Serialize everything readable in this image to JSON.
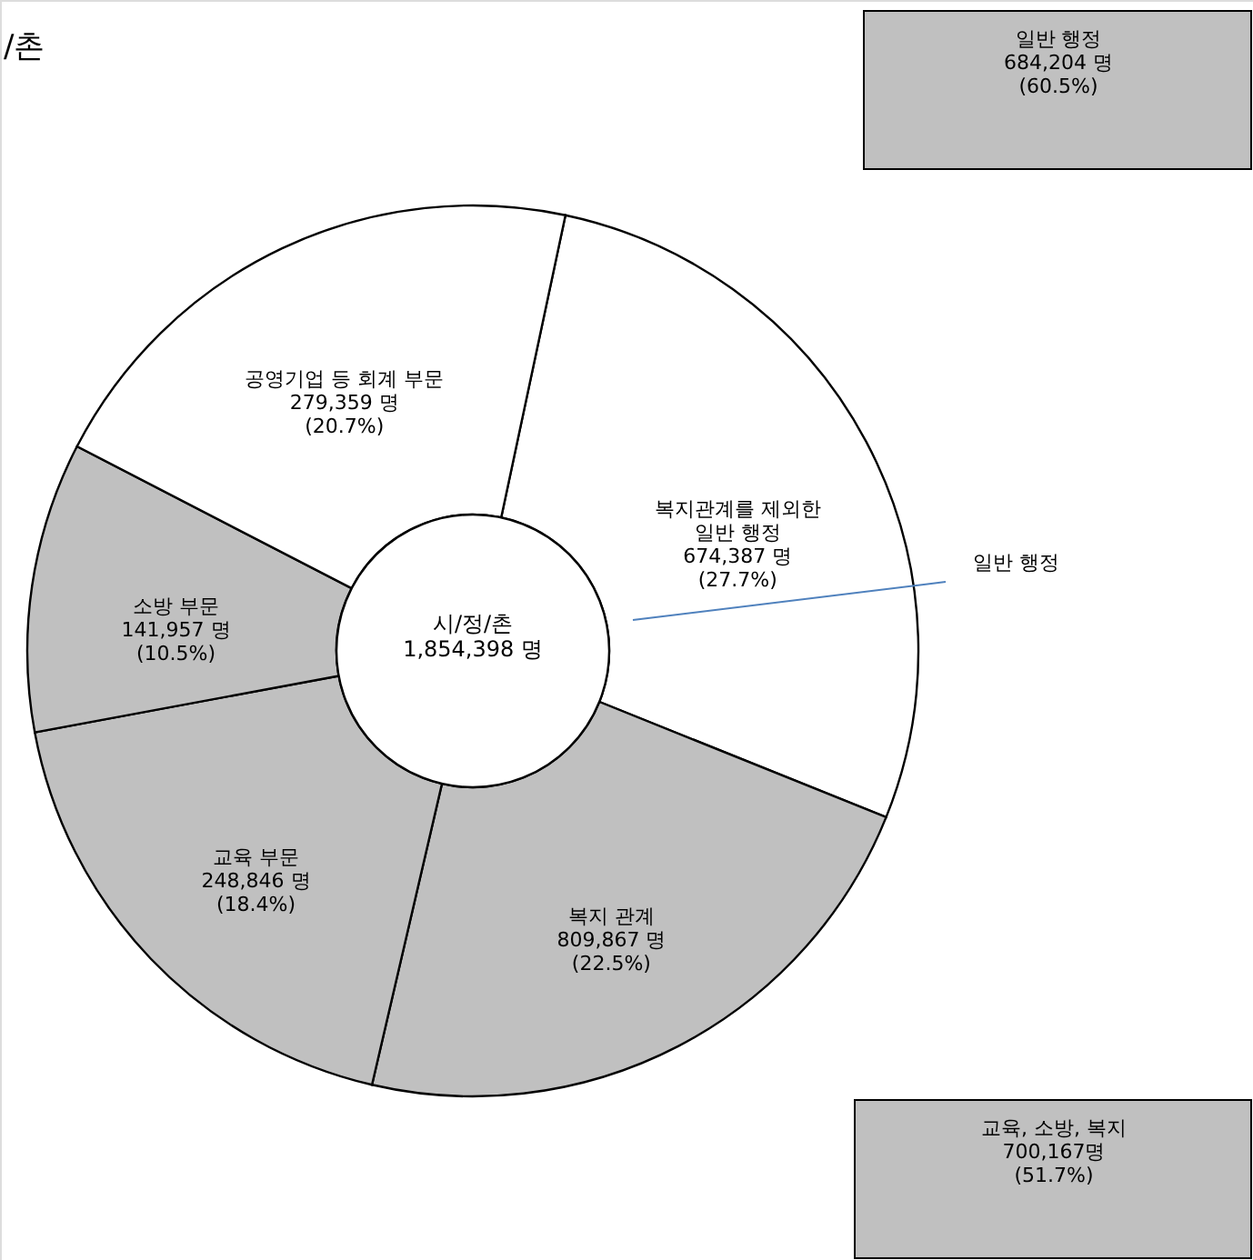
{
  "chart_data": {
    "type": "donut",
    "title": "/촌",
    "categories": [
      "복지관계를 제외한\n일반 행정",
      "복지 관계",
      "교육 부문",
      "소방 부문",
      "공영기업 등 회계 부문"
    ],
    "values": [
      27.7,
      22.5,
      18.4,
      10.5,
      20.7
    ],
    "value_labels": [
      "674,387 명\n(27.7%)",
      "809,867 명\n(22.5%)",
      "248,846 명\n(18.4%)",
      "141,957 명\n(10.5%)",
      "279,359 명\n(20.7%)"
    ],
    "colors": [
      "#ffffff",
      "#c0c0c0",
      "#c0c0c0",
      "#c0c0c0",
      "#ffffff"
    ],
    "annotations": [
      "시/정/촌\n1,854,398 명",
      "일반 행정\n684,204 명\n(60.5%)",
      "교육, 소방, 복지\n700,167명\n(51.7%)",
      "일반 행정"
    ]
  }
}
